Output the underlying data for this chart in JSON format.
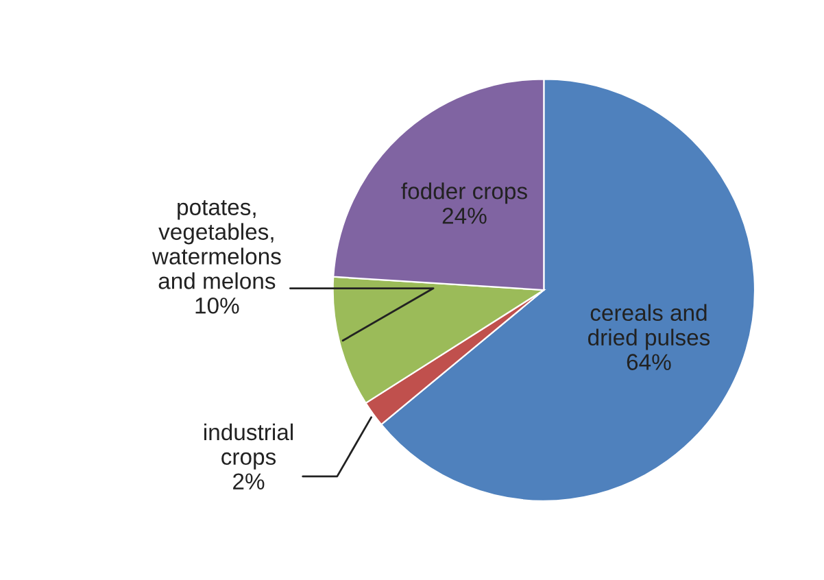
{
  "chart_data": {
    "type": "pie",
    "categories": [
      "cereals and dried pulses",
      "industrial crops",
      "potates, vegetables, watermelons and melons",
      "fodder crops"
    ],
    "values": [
      64,
      2,
      10,
      24
    ],
    "value_labels": [
      "64%",
      "2%",
      "10%",
      "24%"
    ],
    "colors": [
      "#4f81bd",
      "#c0504d",
      "#9bbb59",
      "#8064a2"
    ],
    "legend": false
  }
}
